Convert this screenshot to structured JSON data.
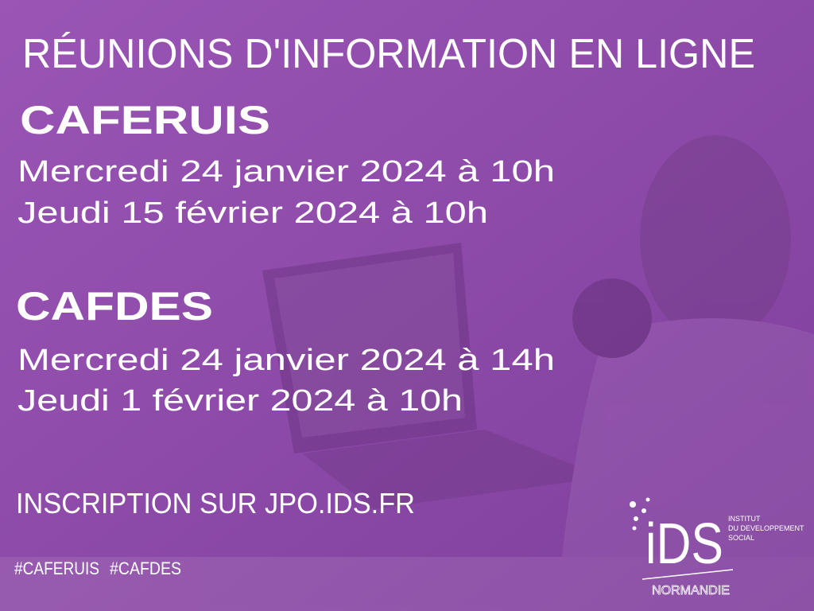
{
  "title": "RÉUNIONS D'INFORMATION EN LIGNE",
  "sections": [
    {
      "name": "CAFERUIS",
      "dates": [
        "Mercredi 24 janvier 2024 à 10h",
        "Jeudi 15 février 2024 à 10h"
      ]
    },
    {
      "name": "CAFDES",
      "dates": [
        "Mercredi 24 janvier 2024 à 14h",
        "Jeudi 1 février 2024 à 10h"
      ]
    }
  ],
  "inscription": "INSCRIPTION SUR JPO.IDS.FR",
  "hashtags": [
    "#CAFERUIS",
    "#CAFDES"
  ],
  "logo": {
    "name": "iDS",
    "lines": [
      "INSTITUT",
      "DU DEVELOPPEMENT",
      "SOCIAL"
    ],
    "region": "NORMANDIE"
  }
}
